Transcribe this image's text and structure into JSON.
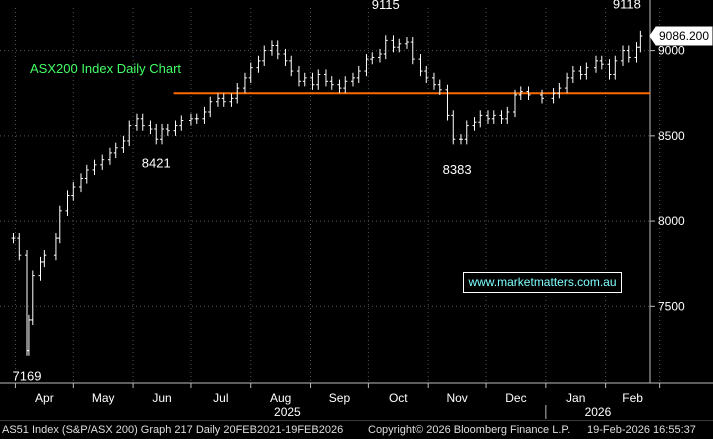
{
  "chart_data": {
    "type": "ohlc",
    "title": "ASX200 Index Daily Chart",
    "ylim": [
      7050,
      9250
    ],
    "y_ticks": [
      7500,
      8000,
      8500,
      9000
    ],
    "x_ticks": [
      "Apr",
      "May",
      "Jun",
      "Jul",
      "Aug",
      "Sep",
      "Oct",
      "Nov",
      "Dec",
      "Jan",
      "Feb"
    ],
    "year_labels": [
      "2025",
      "2026"
    ],
    "last_price": "9086.200",
    "support_level": 8750,
    "support_color": "#ff6a00",
    "grid": true,
    "annotations": [
      {
        "text": "7169",
        "value": 7169
      },
      {
        "text": "8421",
        "value": 8421
      },
      {
        "text": "9115",
        "value": 9115
      },
      {
        "text": "8383",
        "value": 8383
      },
      {
        "text": "9118",
        "value": 9118
      }
    ],
    "series": [
      {
        "x": "2025-03-31",
        "y": 7900
      },
      {
        "x": "2025-04-03",
        "y": 7800
      },
      {
        "x": "2025-04-07",
        "y": 7240
      },
      {
        "x": "2025-04-08",
        "y": 7420
      },
      {
        "x": "2025-04-10",
        "y": 7680
      },
      {
        "x": "2025-04-14",
        "y": 7760
      },
      {
        "x": "2025-04-16",
        "y": 7800
      },
      {
        "x": "2025-04-22",
        "y": 7900
      },
      {
        "x": "2025-04-24",
        "y": 8060
      },
      {
        "x": "2025-04-28",
        "y": 8150
      },
      {
        "x": "2025-05-01",
        "y": 8200
      },
      {
        "x": "2025-05-05",
        "y": 8250
      },
      {
        "x": "2025-05-08",
        "y": 8300
      },
      {
        "x": "2025-05-12",
        "y": 8330
      },
      {
        "x": "2025-05-16",
        "y": 8360
      },
      {
        "x": "2025-05-20",
        "y": 8400
      },
      {
        "x": "2025-05-23",
        "y": 8430
      },
      {
        "x": "2025-05-27",
        "y": 8470
      },
      {
        "x": "2025-05-30",
        "y": 8560
      },
      {
        "x": "2025-06-03",
        "y": 8600
      },
      {
        "x": "2025-06-06",
        "y": 8560
      },
      {
        "x": "2025-06-10",
        "y": 8540
      },
      {
        "x": "2025-06-13",
        "y": 8480
      },
      {
        "x": "2025-06-16",
        "y": 8540
      },
      {
        "x": "2025-06-19",
        "y": 8530
      },
      {
        "x": "2025-06-23",
        "y": 8560
      },
      {
        "x": "2025-06-26",
        "y": 8590
      },
      {
        "x": "2025-07-01",
        "y": 8600
      },
      {
        "x": "2025-07-04",
        "y": 8600
      },
      {
        "x": "2025-07-08",
        "y": 8640
      },
      {
        "x": "2025-07-11",
        "y": 8700
      },
      {
        "x": "2025-07-15",
        "y": 8720
      },
      {
        "x": "2025-07-18",
        "y": 8700
      },
      {
        "x": "2025-07-22",
        "y": 8720
      },
      {
        "x": "2025-07-25",
        "y": 8780
      },
      {
        "x": "2025-07-29",
        "y": 8840
      },
      {
        "x": "2025-08-01",
        "y": 8900
      },
      {
        "x": "2025-08-05",
        "y": 8940
      },
      {
        "x": "2025-08-08",
        "y": 9000
      },
      {
        "x": "2025-08-12",
        "y": 9030
      },
      {
        "x": "2025-08-15",
        "y": 8980
      },
      {
        "x": "2025-08-19",
        "y": 8940
      },
      {
        "x": "2025-08-22",
        "y": 8880
      },
      {
        "x": "2025-08-26",
        "y": 8820
      },
      {
        "x": "2025-08-29",
        "y": 8840
      },
      {
        "x": "2025-09-02",
        "y": 8800
      },
      {
        "x": "2025-09-05",
        "y": 8860
      },
      {
        "x": "2025-09-09",
        "y": 8820
      },
      {
        "x": "2025-09-12",
        "y": 8800
      },
      {
        "x": "2025-09-16",
        "y": 8780
      },
      {
        "x": "2025-09-19",
        "y": 8820
      },
      {
        "x": "2025-09-23",
        "y": 8840
      },
      {
        "x": "2025-09-26",
        "y": 8880
      },
      {
        "x": "2025-09-30",
        "y": 8950
      },
      {
        "x": "2025-10-03",
        "y": 8960
      },
      {
        "x": "2025-10-07",
        "y": 8980
      },
      {
        "x": "2025-10-10",
        "y": 9060
      },
      {
        "x": "2025-10-14",
        "y": 9020
      },
      {
        "x": "2025-10-17",
        "y": 9040
      },
      {
        "x": "2025-10-21",
        "y": 9050
      },
      {
        "x": "2025-10-24",
        "y": 8950
      },
      {
        "x": "2025-10-28",
        "y": 8880
      },
      {
        "x": "2025-10-31",
        "y": 8840
      },
      {
        "x": "2025-11-04",
        "y": 8800
      },
      {
        "x": "2025-11-07",
        "y": 8770
      },
      {
        "x": "2025-11-11",
        "y": 8620
      },
      {
        "x": "2025-11-14",
        "y": 8480
      },
      {
        "x": "2025-11-18",
        "y": 8480
      },
      {
        "x": "2025-11-21",
        "y": 8560
      },
      {
        "x": "2025-11-25",
        "y": 8580
      },
      {
        "x": "2025-11-28",
        "y": 8620
      },
      {
        "x": "2025-12-02",
        "y": 8600
      },
      {
        "x": "2025-12-05",
        "y": 8620
      },
      {
        "x": "2025-12-09",
        "y": 8600
      },
      {
        "x": "2025-12-12",
        "y": 8640
      },
      {
        "x": "2025-12-16",
        "y": 8740
      },
      {
        "x": "2025-12-19",
        "y": 8760
      },
      {
        "x": "2025-12-23",
        "y": 8740
      },
      {
        "x": "2025-12-30",
        "y": 8720
      },
      {
        "x": "2026-01-05",
        "y": 8750
      },
      {
        "x": "2026-01-08",
        "y": 8780
      },
      {
        "x": "2026-01-12",
        "y": 8840
      },
      {
        "x": "2026-01-15",
        "y": 8880
      },
      {
        "x": "2026-01-19",
        "y": 8860
      },
      {
        "x": "2026-01-22",
        "y": 8900
      },
      {
        "x": "2026-01-27",
        "y": 8940
      },
      {
        "x": "2026-01-30",
        "y": 8920
      },
      {
        "x": "2026-02-03",
        "y": 8860
      },
      {
        "x": "2026-02-06",
        "y": 8940
      },
      {
        "x": "2026-02-10",
        "y": 9000
      },
      {
        "x": "2026-02-13",
        "y": 8960
      },
      {
        "x": "2026-02-17",
        "y": 9020
      },
      {
        "x": "2026-02-19",
        "y": 9086
      }
    ]
  },
  "watermark": "www.marketmatters.com.au",
  "footer": {
    "left": "AS51 Index (S&P/ASX 200) Graph 217 Daily 20FEB2021-19FEB2026",
    "center": "Copyright© 2026 Bloomberg Finance L.P.",
    "right": "19-Feb-2026 16:55:37"
  }
}
